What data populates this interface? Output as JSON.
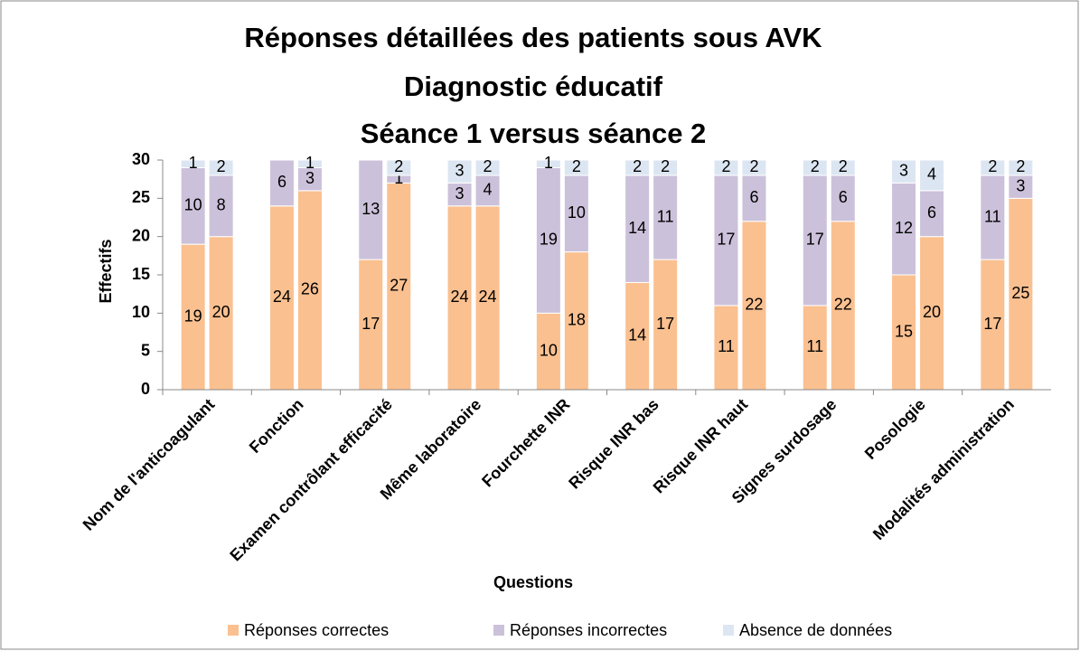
{
  "chart_data": {
    "type": "stacked-grouped-bar",
    "title": [
      "Réponses détaillées des patients sous AVK",
      "Diagnostic éducatif",
      "Séance 1 versus séance 2"
    ],
    "x_label": "Questions",
    "y_label": "Effectifs",
    "categories": [
      "Nom de l'anticoagulant",
      "Fonction",
      "Examen contrôlant efficacité",
      "Même laboratoire",
      "Fourchette INR",
      "Risque INR bas",
      "Risque INR haut",
      "Signes surdosage",
      "Posologie",
      "Modalités administration"
    ],
    "series": [
      {
        "name": "Réponses correctes",
        "color": "#fac090",
        "values": [
          [
            19,
            20
          ],
          [
            24,
            26
          ],
          [
            17,
            27
          ],
          [
            24,
            24
          ],
          [
            10,
            18
          ],
          [
            14,
            17
          ],
          [
            11,
            22
          ],
          [
            11,
            22
          ],
          [
            15,
            20
          ],
          [
            17,
            25
          ]
        ]
      },
      {
        "name": "Réponses incorrectes",
        "color": "#ccc1da",
        "values": [
          [
            10,
            8
          ],
          [
            6,
            3
          ],
          [
            13,
            1
          ],
          [
            3,
            4
          ],
          [
            19,
            10
          ],
          [
            14,
            11
          ],
          [
            17,
            6
          ],
          [
            17,
            6
          ],
          [
            12,
            6
          ],
          [
            11,
            3
          ]
        ]
      },
      {
        "name": "Absence de données",
        "color": "#dce6f2",
        "values": [
          [
            1,
            2
          ],
          [
            null,
            1
          ],
          [
            null,
            2
          ],
          [
            3,
            2
          ],
          [
            1,
            2
          ],
          [
            2,
            2
          ],
          [
            2,
            2
          ],
          [
            2,
            2
          ],
          [
            3,
            4
          ],
          [
            2,
            2
          ]
        ]
      }
    ],
    "ylim": [
      0,
      30
    ],
    "yticks": [
      0,
      5,
      10,
      15,
      20,
      25,
      30
    ],
    "grid": false,
    "legend": "bottom"
  }
}
